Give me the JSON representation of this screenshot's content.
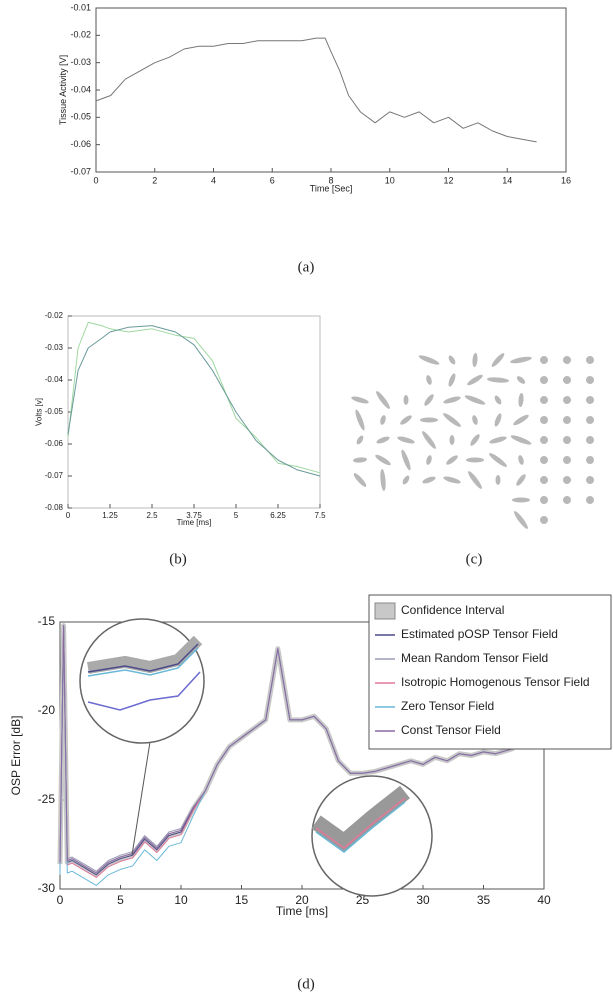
{
  "chart_data": [
    {
      "type": "line",
      "xlabel": "Time [Sec]",
      "ylabel": "Tissue Activity [V]",
      "x": [
        0,
        0.5,
        1,
        1.5,
        2,
        2.5,
        3,
        3.5,
        4,
        4.5,
        5,
        5.5,
        6,
        6.5,
        7,
        7.5,
        7.8,
        8,
        8.3,
        8.6,
        9,
        9.5,
        10,
        10.5,
        11,
        11.5,
        12,
        12.5,
        13,
        13.5,
        14,
        14.5,
        15
      ],
      "series": [
        {
          "color": "#777777",
          "values": [
            -0.044,
            -0.042,
            -0.036,
            -0.033,
            -0.03,
            -0.028,
            -0.025,
            -0.024,
            -0.024,
            -0.023,
            -0.023,
            -0.022,
            -0.022,
            -0.022,
            -0.022,
            -0.021,
            -0.021,
            -0.026,
            -0.033,
            -0.042,
            -0.048,
            -0.052,
            -0.048,
            -0.05,
            -0.048,
            -0.052,
            -0.05,
            -0.054,
            -0.052,
            -0.055,
            -0.057,
            -0.058,
            -0.059
          ]
        }
      ],
      "xlim": [
        0,
        16
      ],
      "ylim": [
        -0.07,
        -0.01
      ],
      "xticks": [
        0,
        2,
        4,
        6,
        8,
        10,
        12,
        14,
        16
      ],
      "yticks": [
        -0.07,
        -0.06,
        -0.05,
        -0.04,
        -0.03,
        -0.02,
        -0.01
      ]
    },
    {
      "type": "line",
      "xlabel": "Time [ms]",
      "ylabel": "Volts [v]",
      "x": [
        0,
        0.3,
        0.6,
        1,
        1.25,
        1.8,
        2.5,
        3.2,
        3.75,
        4.3,
        5,
        5.6,
        6.25,
        6.8,
        7.5
      ],
      "series": [
        {
          "color": "#9fd8a0",
          "values": [
            -0.058,
            -0.03,
            -0.022,
            -0.023,
            -0.024,
            -0.025,
            -0.024,
            -0.026,
            -0.027,
            -0.034,
            -0.052,
            -0.058,
            -0.066,
            -0.067,
            -0.069
          ]
        },
        {
          "color": "#6a9a9a",
          "values": [
            -0.057,
            -0.037,
            -0.03,
            -0.027,
            -0.025,
            -0.0235,
            -0.023,
            -0.025,
            -0.029,
            -0.037,
            -0.05,
            -0.059,
            -0.065,
            -0.068,
            -0.07
          ]
        }
      ],
      "xlim": [
        0,
        7.5
      ],
      "ylim": [
        -0.08,
        -0.02
      ],
      "xticks": [
        0,
        1.25,
        2.5,
        3.75,
        5,
        6.25,
        7.5
      ],
      "yticks": [
        -0.08,
        -0.07,
        -0.06,
        -0.05,
        -0.04,
        -0.03,
        -0.02
      ]
    },
    {
      "type": "line",
      "xlabel": "Time [ms]",
      "ylabel": "OSP Error [dB]",
      "x": [
        0,
        0.3,
        0.6,
        1,
        2,
        3,
        4,
        5,
        6,
        7,
        8,
        9,
        10,
        11,
        12,
        13,
        14,
        15,
        16,
        17,
        18,
        19,
        20,
        21,
        22,
        23,
        24,
        25,
        26,
        27,
        28,
        29,
        30,
        31,
        32,
        33,
        34,
        35,
        36,
        37,
        37.5
      ],
      "series": [
        {
          "name": "Confidence Interval",
          "color": "#c8c8c8",
          "band": true,
          "values": [
            -28.6,
            -15.2,
            -28.5,
            -28.4,
            -28.8,
            -29.2,
            -28.6,
            -28.3,
            -28.1,
            -27.2,
            -27.8,
            -27.0,
            -26.8,
            -25.5,
            -24.5,
            -23.0,
            -22.0,
            -21.5,
            -21.0,
            -20.5,
            -16.5,
            -20.5,
            -20.5,
            -20.3,
            -21.0,
            -22.8,
            -23.5,
            -23.5,
            -23.4,
            -23.2,
            -23.0,
            -22.8,
            -23.0,
            -22.6,
            -22.8,
            -22.4,
            -22.5,
            -22.3,
            -22.4,
            -22.2,
            -22.1
          ]
        },
        {
          "name": "Estimated pOSP Tensor Field",
          "color": "#4b4b8a",
          "values": [
            -28.6,
            -15.2,
            -28.5,
            -28.4,
            -28.8,
            -29.2,
            -28.6,
            -28.3,
            -28.1,
            -27.2,
            -27.8,
            -27.0,
            -26.8,
            -25.5,
            -24.5,
            -23.0,
            -22.0,
            -21.5,
            -21.0,
            -20.5,
            -16.5,
            -20.5,
            -20.5,
            -20.3,
            -21.0,
            -22.8,
            -23.5,
            -23.5,
            -23.4,
            -23.2,
            -23.0,
            -22.8,
            -23.0,
            -22.6,
            -22.8,
            -22.4,
            -22.5,
            -22.3,
            -22.4,
            -22.2,
            -22.1
          ]
        },
        {
          "name": "Mean Random Tensor Field",
          "color": "#9a9ab8",
          "values": [
            -28.4,
            -15.2,
            -28.3,
            -28.2,
            -28.6,
            -29.0,
            -28.4,
            -28.1,
            -27.9,
            -27.0,
            -27.6,
            -26.8,
            -26.6,
            -25.4,
            -24.5,
            -23.0,
            -22.0,
            -21.5,
            -21.0,
            -20.5,
            -16.5,
            -20.5,
            -20.5,
            -20.3,
            -21.0,
            -22.8,
            -23.5,
            -23.5,
            -23.4,
            -23.2,
            -23.0,
            -22.8,
            -23.0,
            -22.6,
            -22.8,
            -22.4,
            -22.5,
            -22.3,
            -22.4,
            -22.2,
            -22.1
          ]
        },
        {
          "name": "Isotropic Homogenous Tensor Field",
          "color": "#e07a9a",
          "values": [
            -28.75,
            -15.2,
            -28.65,
            -28.55,
            -28.95,
            -29.35,
            -28.75,
            -28.45,
            -28.25,
            -27.35,
            -27.95,
            -27.15,
            -26.95,
            -25.6,
            -24.5,
            -23.0,
            -22.0,
            -21.5,
            -21.0,
            -20.5,
            -16.5,
            -20.5,
            -20.5,
            -20.3,
            -21.0,
            -22.8,
            -23.5,
            -23.5,
            -23.4,
            -23.2,
            -23.0,
            -22.8,
            -23.0,
            -22.6,
            -22.8,
            -22.4,
            -22.5,
            -22.3,
            -22.4,
            -22.2,
            -22.1
          ]
        },
        {
          "name": "Zero Tensor Field",
          "color": "#6ab8d8",
          "values": [
            -29.2,
            -15.2,
            -29.1,
            -29.0,
            -29.4,
            -29.8,
            -29.2,
            -28.9,
            -28.7,
            -27.8,
            -28.4,
            -27.6,
            -27.4,
            -25.9,
            -24.5,
            -23.0,
            -22.0,
            -21.5,
            -21.0,
            -20.5,
            -16.5,
            -20.5,
            -20.5,
            -20.3,
            -21.0,
            -22.8,
            -23.5,
            -23.5,
            -23.4,
            -23.2,
            -23.0,
            -22.8,
            -23.0,
            -22.6,
            -22.8,
            -22.4,
            -22.5,
            -22.3,
            -22.4,
            -22.2,
            -22.1
          ]
        },
        {
          "name": "Const Tensor Field",
          "color": "#8a6aa0",
          "values": [
            -28.5,
            -15.2,
            -28.4,
            -28.3,
            -28.7,
            -29.1,
            -28.5,
            -28.2,
            -28.0,
            -27.1,
            -27.7,
            -26.9,
            -26.7,
            -25.45,
            -24.5,
            -23.0,
            -22.0,
            -21.5,
            -21.0,
            -20.5,
            -16.5,
            -20.5,
            -20.5,
            -20.3,
            -21.0,
            -22.8,
            -23.5,
            -23.5,
            -23.4,
            -23.2,
            -23.0,
            -22.8,
            -23.0,
            -22.6,
            -22.8,
            -22.4,
            -22.5,
            -22.3,
            -22.4,
            -22.2,
            -22.1
          ]
        }
      ],
      "xlim": [
        0,
        40
      ],
      "ylim": [
        -30,
        -15
      ],
      "xticks": [
        0,
        5,
        10,
        15,
        20,
        25,
        30,
        35,
        40
      ],
      "yticks": [
        -30,
        -25,
        -20,
        -15
      ],
      "legend": "upper right"
    }
  ],
  "captions": [
    "(a)",
    "(b)",
    "(c)",
    "(d)"
  ]
}
